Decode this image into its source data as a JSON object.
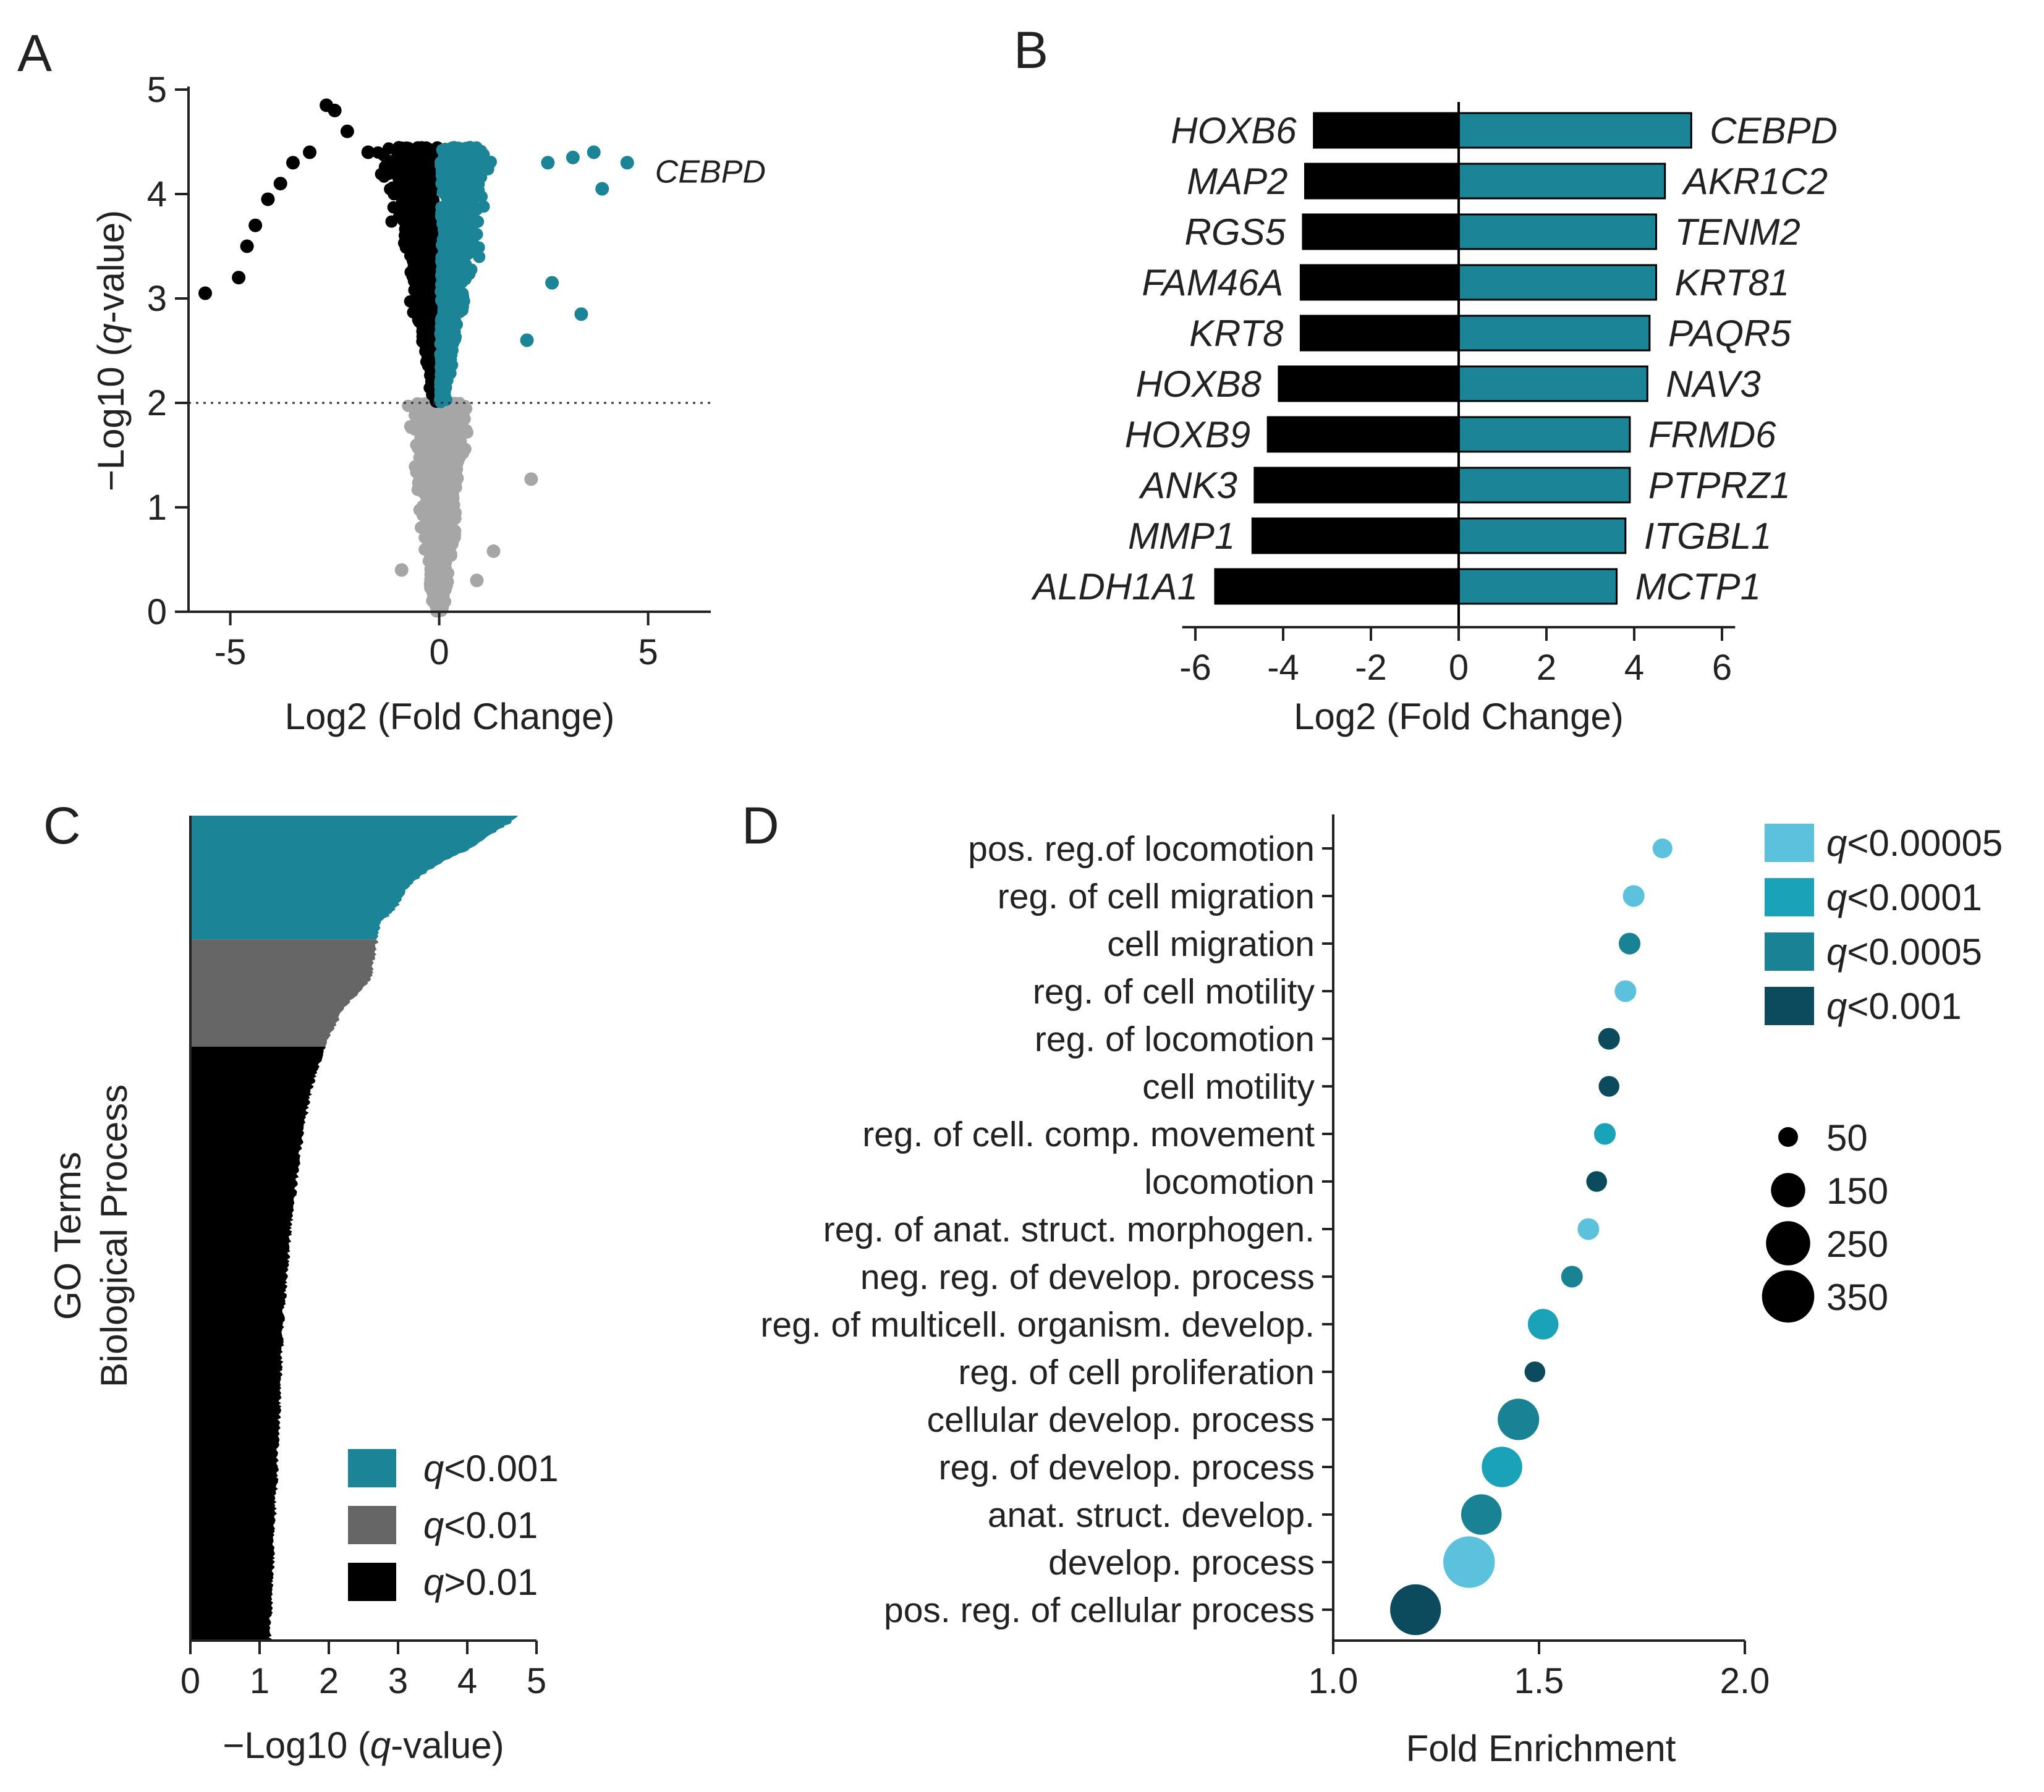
{
  "colors": {
    "up": "#1b8597",
    "down": "#000000",
    "nonsig": "#a6a6a6",
    "gray_bar": "#666666",
    "q_00005": "#5bc1dc",
    "q_0001": "#1aa3b8",
    "q_0005": "#1a8295",
    "q_001": "#0c4b5e"
  },
  "panels": {
    "a": "A",
    "b": "B",
    "c": "C",
    "d": "D"
  },
  "chart_data": [
    {
      "panel": "A",
      "type": "scatter",
      "xlabel": "Log2 (Fold Change)",
      "ylabel_prefix": "−Log10 (",
      "ylabel_italic": "q",
      "ylabel_suffix": "-value)",
      "xlim": [
        -6,
        6.5
      ],
      "ylim": [
        0,
        5
      ],
      "xticks": [
        -5,
        0,
        5
      ],
      "yticks": [
        0,
        1,
        2,
        3,
        4,
        5
      ],
      "threshold_y": 2,
      "annotation": {
        "label": "CEBPD",
        "x": 4.5,
        "y": 4.3
      },
      "outlier_points": {
        "down": [
          [
            -5.6,
            3.05
          ],
          [
            -4.8,
            3.2
          ],
          [
            -4.6,
            3.5
          ],
          [
            -4.4,
            3.7
          ],
          [
            -4.1,
            3.95
          ],
          [
            -3.8,
            4.1
          ],
          [
            -3.5,
            4.3
          ],
          [
            -3.1,
            4.4
          ],
          [
            -2.7,
            4.85
          ],
          [
            -2.5,
            4.8
          ],
          [
            -2.2,
            4.6
          ],
          [
            -1.7,
            4.4
          ]
        ],
        "up": [
          [
            4.5,
            4.3
          ],
          [
            3.7,
            4.4
          ],
          [
            3.2,
            4.35
          ],
          [
            2.6,
            4.3
          ],
          [
            3.9,
            4.05
          ],
          [
            3.4,
            2.85
          ],
          [
            2.7,
            3.15
          ],
          [
            2.1,
            2.6
          ],
          [
            1.2,
            4.3
          ]
        ],
        "nonsig": [
          [
            2.2,
            1.27
          ],
          [
            1.3,
            0.58
          ],
          [
            -0.9,
            0.4
          ],
          [
            0.9,
            0.3
          ]
        ]
      }
    },
    {
      "panel": "B",
      "type": "bar",
      "orientation": "horizontal",
      "xlabel": "Log2 (Fold Change)",
      "xlim": [
        -7,
        7
      ],
      "xticks": [
        -6,
        -4,
        -2,
        0,
        2,
        4,
        6
      ],
      "down_genes": [
        {
          "gene": "HOXB6",
          "value": -3.3
        },
        {
          "gene": "MAP2",
          "value": -3.5
        },
        {
          "gene": "RGS5",
          "value": -3.55
        },
        {
          "gene": "FAM46A",
          "value": -3.6
        },
        {
          "gene": "KRT8",
          "value": -3.6
        },
        {
          "gene": "HOXB8",
          "value": -4.1
        },
        {
          "gene": "HOXB9",
          "value": -4.35
        },
        {
          "gene": "ANK3",
          "value": -4.65
        },
        {
          "gene": "MMP1",
          "value": -4.7
        },
        {
          "gene": "ALDH1A1",
          "value": -5.55
        }
      ],
      "up_genes": [
        {
          "gene": "CEBPD",
          "value": 5.3
        },
        {
          "gene": "AKR1C2",
          "value": 4.7
        },
        {
          "gene": "TENM2",
          "value": 4.5
        },
        {
          "gene": "KRT81",
          "value": 4.5
        },
        {
          "gene": "PAQR5",
          "value": 4.35
        },
        {
          "gene": "NAV3",
          "value": 4.3
        },
        {
          "gene": "FRMD6",
          "value": 3.9
        },
        {
          "gene": "PTPRZ1",
          "value": 3.9
        },
        {
          "gene": "ITGBL1",
          "value": 3.8
        },
        {
          "gene": "MCTP1",
          "value": 3.6
        }
      ]
    },
    {
      "panel": "C",
      "type": "bar",
      "orientation": "horizontal-ranked",
      "ylabel_line1": "GO Terms",
      "ylabel_line2": "Biological Process",
      "xlabel_prefix": "−Log10 (",
      "xlabel_italic": "q",
      "xlabel_suffix": "-value)",
      "xlim": [
        0,
        5
      ],
      "xticks": [
        0,
        1,
        2,
        3,
        4,
        5
      ],
      "profile": [
        [
          0,
          4.75
        ],
        [
          0.01,
          4.6
        ],
        [
          0.025,
          4.3
        ],
        [
          0.04,
          4.05
        ],
        [
          0.06,
          3.55
        ],
        [
          0.085,
          3.15
        ],
        [
          0.11,
          3.0
        ],
        [
          0.13,
          2.75
        ],
        [
          0.15,
          2.7
        ],
        [
          0.2,
          2.6
        ],
        [
          0.23,
          2.25
        ],
        [
          0.26,
          2.05
        ],
        [
          0.28,
          1.95
        ],
        [
          0.33,
          1.75
        ],
        [
          0.4,
          1.6
        ],
        [
          0.5,
          1.45
        ],
        [
          0.6,
          1.35
        ],
        [
          0.7,
          1.3
        ],
        [
          0.8,
          1.25
        ],
        [
          0.9,
          1.2
        ],
        [
          1.0,
          1.15
        ]
      ],
      "gray_start": 0.15,
      "black_start": 0.28,
      "legend": [
        {
          "prefix": "q",
          "label": "<0.001",
          "color": "#1b8597"
        },
        {
          "prefix": "q",
          "label": "<0.01",
          "color": "#666666"
        },
        {
          "prefix": "q",
          "label": ">0.01",
          "color": "#000000"
        }
      ]
    },
    {
      "panel": "D",
      "type": "scatter",
      "subtype": "bubble",
      "xlabel": "Fold Enrichment",
      "xlim": [
        1.0,
        2.0
      ],
      "xticks": [
        "1.0",
        "1.5",
        "2.0"
      ],
      "terms": [
        {
          "term": "pos. reg.of locomotion",
          "fe": 1.8,
          "size": 50,
          "q": "q_00005"
        },
        {
          "term": "reg. of cell migration",
          "fe": 1.73,
          "size": 60,
          "q": "q_00005"
        },
        {
          "term": "cell migration",
          "fe": 1.72,
          "size": 60,
          "q": "q_0005"
        },
        {
          "term": "reg. of cell motility",
          "fe": 1.71,
          "size": 60,
          "q": "q_00005"
        },
        {
          "term": "reg. of locomotion",
          "fe": 1.67,
          "size": 60,
          "q": "q_001"
        },
        {
          "term": "cell motility",
          "fe": 1.67,
          "size": 55,
          "q": "q_001"
        },
        {
          "term": "reg. of cell. comp. movement",
          "fe": 1.66,
          "size": 60,
          "q": "q_0001"
        },
        {
          "term": "locomotion",
          "fe": 1.64,
          "size": 55,
          "q": "q_001"
        },
        {
          "term": "reg. of anat. struct. morphogen.",
          "fe": 1.62,
          "size": 60,
          "q": "q_00005"
        },
        {
          "term": "neg. reg. of develop. process",
          "fe": 1.58,
          "size": 60,
          "q": "q_0005"
        },
        {
          "term": "reg. of multicell. organism. develop.",
          "fe": 1.51,
          "size": 120,
          "q": "q_0001"
        },
        {
          "term": "reg. of cell proliferation",
          "fe": 1.49,
          "size": 55,
          "q": "q_001"
        },
        {
          "term": "cellular develop. process",
          "fe": 1.45,
          "size": 220,
          "q": "q_0005"
        },
        {
          "term": "reg. of develop. process",
          "fe": 1.41,
          "size": 210,
          "q": "q_0001"
        },
        {
          "term": "anat. struct. develop.",
          "fe": 1.36,
          "size": 210,
          "q": "q_0005"
        },
        {
          "term": "develop. process",
          "fe": 1.33,
          "size": 340,
          "q": "q_00005"
        },
        {
          "term": "pos. reg. of cellular process",
          "fe": 1.2,
          "size": 330,
          "q": "q_001"
        }
      ],
      "color_legend": [
        {
          "prefix": "q",
          "label": "<0.00005",
          "key": "q_00005"
        },
        {
          "prefix": "q",
          "label": "<0.0001",
          "key": "q_0001"
        },
        {
          "prefix": "q",
          "label": "<0.0005",
          "key": "q_0005"
        },
        {
          "prefix": "q",
          "label": "<0.001",
          "key": "q_001"
        }
      ],
      "size_legend": [
        50,
        150,
        250,
        350
      ]
    }
  ]
}
